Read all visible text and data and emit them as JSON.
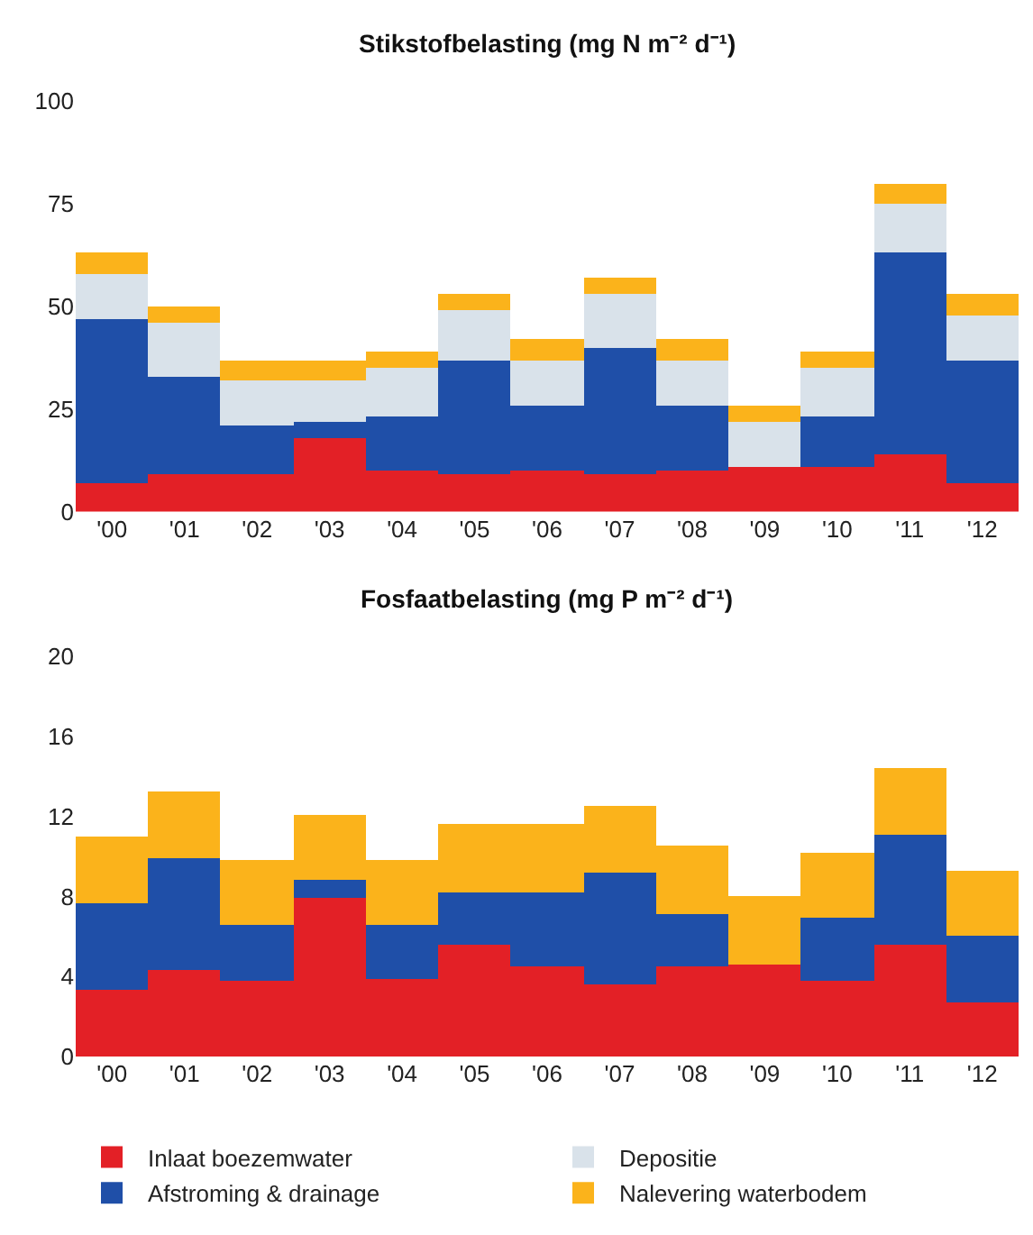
{
  "chart_data": [
    {
      "type": "bar",
      "stacked": true,
      "title": "Stikstofbelasting (mg N m⁻² d⁻¹)",
      "categories": [
        "'00",
        "'01",
        "'02",
        "'03",
        "'04",
        "'05",
        "'06",
        "'07",
        "'08",
        "'09",
        "'10",
        "'11",
        "'12"
      ],
      "ylim": [
        0,
        100
      ],
      "yticks": [
        0,
        25,
        50,
        75,
        100
      ],
      "grid": false,
      "legend": "bottom",
      "series": [
        {
          "name": "Inlaat boezemwater",
          "color": "#e32026",
          "values": [
            7,
            9,
            9,
            18,
            10,
            9,
            10,
            9,
            10,
            11,
            11,
            14,
            7
          ]
        },
        {
          "name": "Afstroming & drainage",
          "color": "#1f4fa8",
          "values": [
            40,
            24,
            12,
            4,
            13,
            28,
            16,
            31,
            16,
            0,
            12,
            49,
            30
          ]
        },
        {
          "name": "Depositie",
          "color": "#d9e2ea",
          "values": [
            11,
            13,
            11,
            10,
            12,
            12,
            11,
            13,
            11,
            11,
            12,
            12,
            11
          ]
        },
        {
          "name": "Nalevering waterbodem",
          "color": "#fbb31b",
          "values": [
            5,
            4,
            5,
            5,
            4,
            4,
            5,
            4,
            5,
            4,
            4,
            5,
            5
          ]
        }
      ]
    },
    {
      "type": "bar",
      "stacked": true,
      "title": "Fosfaatbelasting (mg P m⁻² d⁻¹)",
      "categories": [
        "'00",
        "'01",
        "'02",
        "'03",
        "'04",
        "'05",
        "'06",
        "'07",
        "'08",
        "'09",
        "'10",
        "'11",
        "'12"
      ],
      "ylim": [
        0,
        20
      ],
      "yticks": [
        0,
        4,
        8,
        12,
        16,
        20
      ],
      "grid": false,
      "series": [
        {
          "color": "#e32026",
          "values": [
            3.3,
            4.3,
            3.8,
            7.9,
            3.9,
            5.6,
            4.5,
            3.6,
            4.5,
            4.6,
            3.8,
            5.6,
            2.7
          ]
        },
        {
          "color": "#1f4fa8",
          "values": [
            4.4,
            5.6,
            2.8,
            0.9,
            2.7,
            2.6,
            3.7,
            5.6,
            2.6,
            0,
            3.1,
            5.5,
            3.3
          ]
        },
        {
          "color": "#fbb31b",
          "values": [
            3.3,
            3.3,
            3.2,
            3.3,
            3.2,
            3.4,
            3.4,
            3.3,
            3.4,
            3.4,
            3.3,
            3.3,
            3.3
          ]
        }
      ]
    }
  ]
}
